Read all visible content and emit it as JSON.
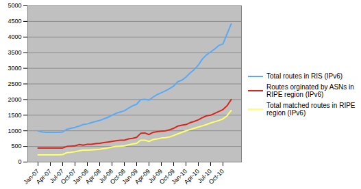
{
  "chart_data": {
    "type": "line",
    "categories": [
      "Jan-07",
      null,
      null,
      "Apr-07",
      null,
      null,
      "Jul-07",
      null,
      null,
      "Oct-07",
      null,
      null,
      "Jan-08",
      null,
      null,
      "Apr-08",
      null,
      null,
      "Jul-08",
      null,
      null,
      "Oct-08",
      null,
      null,
      "Jan-09",
      null,
      null,
      "Apr-09",
      null,
      null,
      "Jul-09",
      null,
      null,
      "Oct-09",
      null,
      null,
      "Jan-10",
      null,
      null,
      "Apr-10",
      null,
      null,
      "Jul-10",
      null,
      null,
      "Oct-10",
      null,
      null
    ],
    "series": [
      {
        "name": "Total routes in RIS (IPv6)",
        "color": "#5aa9f5",
        "values": [
          1000,
          960,
          950,
          950,
          950,
          950,
          960,
          1050,
          1080,
          1110,
          1150,
          1200,
          1220,
          1260,
          1300,
          1330,
          1380,
          1430,
          1500,
          1560,
          1600,
          1640,
          1720,
          1800,
          1850,
          2000,
          2010,
          1980,
          2080,
          2160,
          2220,
          2280,
          2350,
          2430,
          2570,
          2620,
          2720,
          2850,
          2960,
          3100,
          3300,
          3430,
          3520,
          3620,
          3730,
          3780,
          4100,
          4420
        ]
      },
      {
        "name": "Routes orginated by ASNs in RIPE region (IPv6)",
        "color": "#d9261c",
        "values": [
          450,
          450,
          450,
          450,
          450,
          450,
          450,
          500,
          510,
          520,
          560,
          540,
          570,
          570,
          590,
          600,
          620,
          640,
          660,
          680,
          700,
          700,
          740,
          760,
          790,
          920,
          930,
          880,
          950,
          970,
          990,
          1000,
          1030,
          1080,
          1150,
          1180,
          1200,
          1260,
          1300,
          1350,
          1420,
          1480,
          1500,
          1560,
          1620,
          1680,
          1800,
          2000
        ]
      },
      {
        "name": "Total matched routes in RIPE region (IPv6)",
        "color": "#ffff66",
        "values": [
          230,
          230,
          230,
          230,
          230,
          230,
          240,
          300,
          310,
          330,
          360,
          380,
          380,
          390,
          400,
          410,
          430,
          450,
          480,
          500,
          510,
          520,
          550,
          580,
          600,
          700,
          700,
          660,
          720,
          740,
          770,
          780,
          800,
          850,
          900,
          950,
          1000,
          1040,
          1080,
          1120,
          1160,
          1200,
          1250,
          1290,
          1330,
          1380,
          1480,
          1650
        ]
      }
    ],
    "ylim": [
      0,
      5000
    ],
    "yticks": [
      0,
      500,
      1000,
      1500,
      2000,
      2500,
      3000,
      3500,
      4000,
      4500,
      5000
    ],
    "grid": true,
    "legend": "right"
  }
}
